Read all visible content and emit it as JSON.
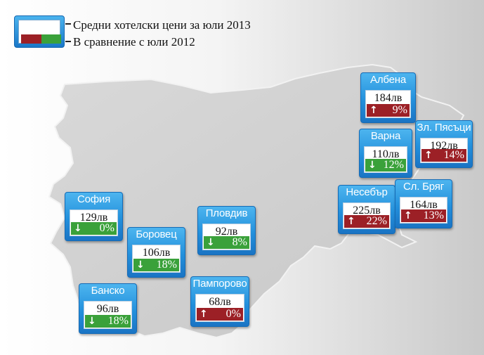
{
  "legend": {
    "price_label": "Средни хотелски цени за юли 2013",
    "change_label": "В сравнение с юли 2012"
  },
  "colors": {
    "increase": "#9c2026",
    "decrease": "#3aa13a",
    "box": "#2390dc"
  },
  "cities": [
    {
      "name": "Албена",
      "price": "184лв",
      "change": "9%",
      "direction": "up"
    },
    {
      "name": "Зл. Пясъци",
      "price": "192лв",
      "change": "14%",
      "direction": "up"
    },
    {
      "name": "Варна",
      "price": "110лв",
      "change": "12%",
      "direction": "down"
    },
    {
      "name": "Несебър",
      "price": "225лв",
      "change": "22%",
      "direction": "up"
    },
    {
      "name": "Сл. Бряг",
      "price": "164лв",
      "change": "13%",
      "direction": "up"
    },
    {
      "name": "София",
      "price": "129лв",
      "change": "0%",
      "direction": "down"
    },
    {
      "name": "Пловдив",
      "price": "92лв",
      "change": "8%",
      "direction": "down"
    },
    {
      "name": "Боровец",
      "price": "106лв",
      "change": "18%",
      "direction": "down"
    },
    {
      "name": "Банско",
      "price": "96лв",
      "change": "18%",
      "direction": "down"
    },
    {
      "name": "Пампорово",
      "price": "68лв",
      "change": "0%",
      "direction": "up"
    }
  ]
}
